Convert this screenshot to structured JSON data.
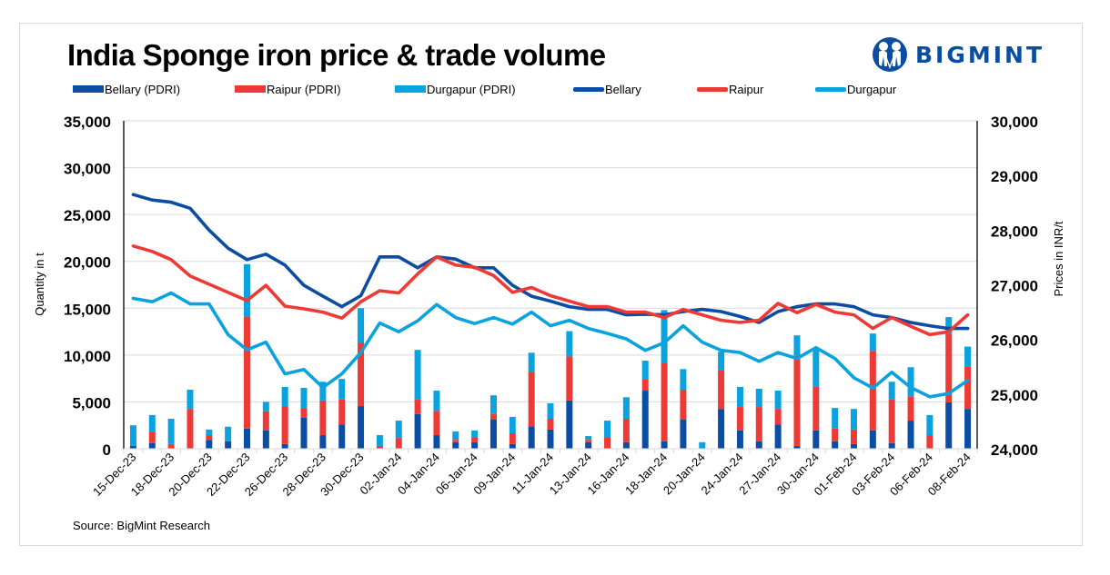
{
  "title": "India Sponge iron price & trade volume",
  "logo": {
    "text": "BIGMINT",
    "icon": "bigmint-people-icon",
    "color": "#0b4da2"
  },
  "source": "Source: BigMint Research",
  "colors": {
    "bellary": "#0b4da2",
    "raipur": "#ee3a36",
    "durgapur": "#0aa2df"
  },
  "legend": [
    {
      "label": "Bellary (PDRI)",
      "kind": "bar",
      "color": "#0b4da2"
    },
    {
      "label": "Raipur (PDRI)",
      "kind": "bar",
      "color": "#ee3a36"
    },
    {
      "label": "Durgapur (PDRI)",
      "kind": "bar",
      "color": "#0aa2df"
    },
    {
      "label": "Bellary",
      "kind": "line",
      "color": "#0b4da2"
    },
    {
      "label": "Raipur",
      "kind": "line",
      "color": "#ee3a36"
    },
    {
      "label": "Durgapur",
      "kind": "line",
      "color": "#0aa2df"
    }
  ],
  "chart_data": {
    "type": "bar",
    "subtype": "stacked-bar-with-lines-dual-axis",
    "title": "India Sponge iron price & trade volume",
    "ylabel": "Quantity in t",
    "y2label": "Prices in INR/t",
    "ylim": [
      0,
      35000
    ],
    "y2lim": [
      24000,
      30000
    ],
    "yticks": [
      "0",
      "5,000",
      "10,000",
      "15,000",
      "20,000",
      "25,000",
      "30,000",
      "35,000"
    ],
    "y2ticks": [
      "24,000",
      "25,000",
      "26,000",
      "27,000",
      "28,000",
      "29,000",
      "30,000"
    ],
    "grid": true,
    "legend_position": "top",
    "x_tick_labels": [
      "15-Dec-23",
      "18-Dec-23",
      "20-Dec-23",
      "22-Dec-23",
      "26-Dec-23",
      "28-Dec-23",
      "30-Dec-23",
      "02-Jan-24",
      "04-Jan-24",
      "06-Jan-24",
      "09-Jan-24",
      "11-Jan-24",
      "13-Jan-24",
      "16-Jan-24",
      "18-Jan-24",
      "20-Jan-24",
      "24-Jan-24",
      "27-Jan-24",
      "30-Jan-24",
      "01-Feb-24",
      "03-Feb-24",
      "06-Feb-24",
      "08-Feb-24"
    ],
    "x_tick_every": 2,
    "n_points": 45,
    "bar_series": [
      {
        "name": "Bellary (PDRI)",
        "color": "#0b4da2",
        "values": [
          300,
          600,
          0,
          0,
          950,
          800,
          2150,
          1950,
          500,
          3300,
          1450,
          2600,
          4550,
          0,
          0,
          3700,
          1450,
          700,
          700,
          3100,
          500,
          2400,
          2050,
          5150,
          700,
          0,
          700,
          6200,
          800,
          3100,
          0,
          4250,
          1950,
          800,
          2600,
          300,
          1950,
          800,
          500,
          1950,
          600,
          3000,
          0,
          4950,
          4250
        ]
      },
      {
        "name": "Raipur (PDRI)",
        "color": "#ee3a36",
        "values": [
          0,
          1150,
          500,
          4250,
          500,
          0,
          11950,
          2050,
          4050,
          1050,
          3700,
          2650,
          6750,
          300,
          1150,
          1550,
          2600,
          250,
          550,
          600,
          1150,
          5750,
          1150,
          4700,
          250,
          1250,
          2500,
          1250,
          8400,
          3200,
          0,
          4150,
          2500,
          3650,
          1650,
          9600,
          4650,
          1350,
          1550,
          8500,
          4650,
          2600,
          1450,
          7350,
          4550
        ]
      },
      {
        "name": "Durgapur (PDRI)",
        "color": "#0aa2df",
        "values": [
          2200,
          1850,
          2700,
          2050,
          600,
          1550,
          5600,
          1000,
          2050,
          2150,
          2000,
          2200,
          3700,
          1150,
          1850,
          5300,
          2150,
          900,
          700,
          2000,
          1750,
          2100,
          1650,
          2700,
          400,
          1750,
          2300,
          1950,
          5600,
          2200,
          700,
          1950,
          2150,
          1950,
          1950,
          2200,
          4100,
          2200,
          2200,
          1850,
          1900,
          3100,
          2150,
          1750,
          2100
        ]
      }
    ],
    "line_series": [
      {
        "name": "Bellary",
        "color": "#0b4da2",
        "axis": "right",
        "values": [
          28650,
          28550,
          28510,
          28400,
          28000,
          27670,
          27460,
          27560,
          27360,
          26990,
          26790,
          26600,
          26800,
          27510,
          27510,
          27310,
          27510,
          27470,
          27310,
          27310,
          26990,
          26790,
          26700,
          26600,
          26550,
          26550,
          26450,
          26460,
          26450,
          26510,
          26550,
          26510,
          26420,
          26310,
          26510,
          26600,
          26650,
          26650,
          26600,
          26450,
          26400,
          26310,
          26250,
          26200,
          26200
        ]
      },
      {
        "name": "Raipur",
        "color": "#ee3a36",
        "axis": "right",
        "values": [
          27710,
          27610,
          27460,
          27160,
          27010,
          26860,
          26710,
          26990,
          26610,
          26560,
          26500,
          26390,
          26690,
          26890,
          26850,
          27200,
          27510,
          27360,
          27320,
          27170,
          26860,
          26950,
          26800,
          26700,
          26600,
          26600,
          26500,
          26500,
          26400,
          26550,
          26450,
          26350,
          26310,
          26350,
          26660,
          26490,
          26640,
          26500,
          26450,
          26200,
          26400,
          26240,
          26090,
          26140,
          26450
        ]
      },
      {
        "name": "Durgapur",
        "color": "#0aa2df",
        "axis": "right",
        "values": [
          26750,
          26690,
          26850,
          26650,
          26650,
          26090,
          25810,
          25950,
          25370,
          25450,
          25120,
          25370,
          25760,
          26300,
          26140,
          26340,
          26640,
          26400,
          26290,
          26400,
          26280,
          26500,
          26250,
          26350,
          26200,
          26110,
          26010,
          25800,
          25940,
          26250,
          25950,
          25800,
          25760,
          25600,
          25760,
          25650,
          25850,
          25650,
          25300,
          25110,
          25400,
          25120,
          24950,
          25010,
          25250
        ]
      }
    ]
  }
}
